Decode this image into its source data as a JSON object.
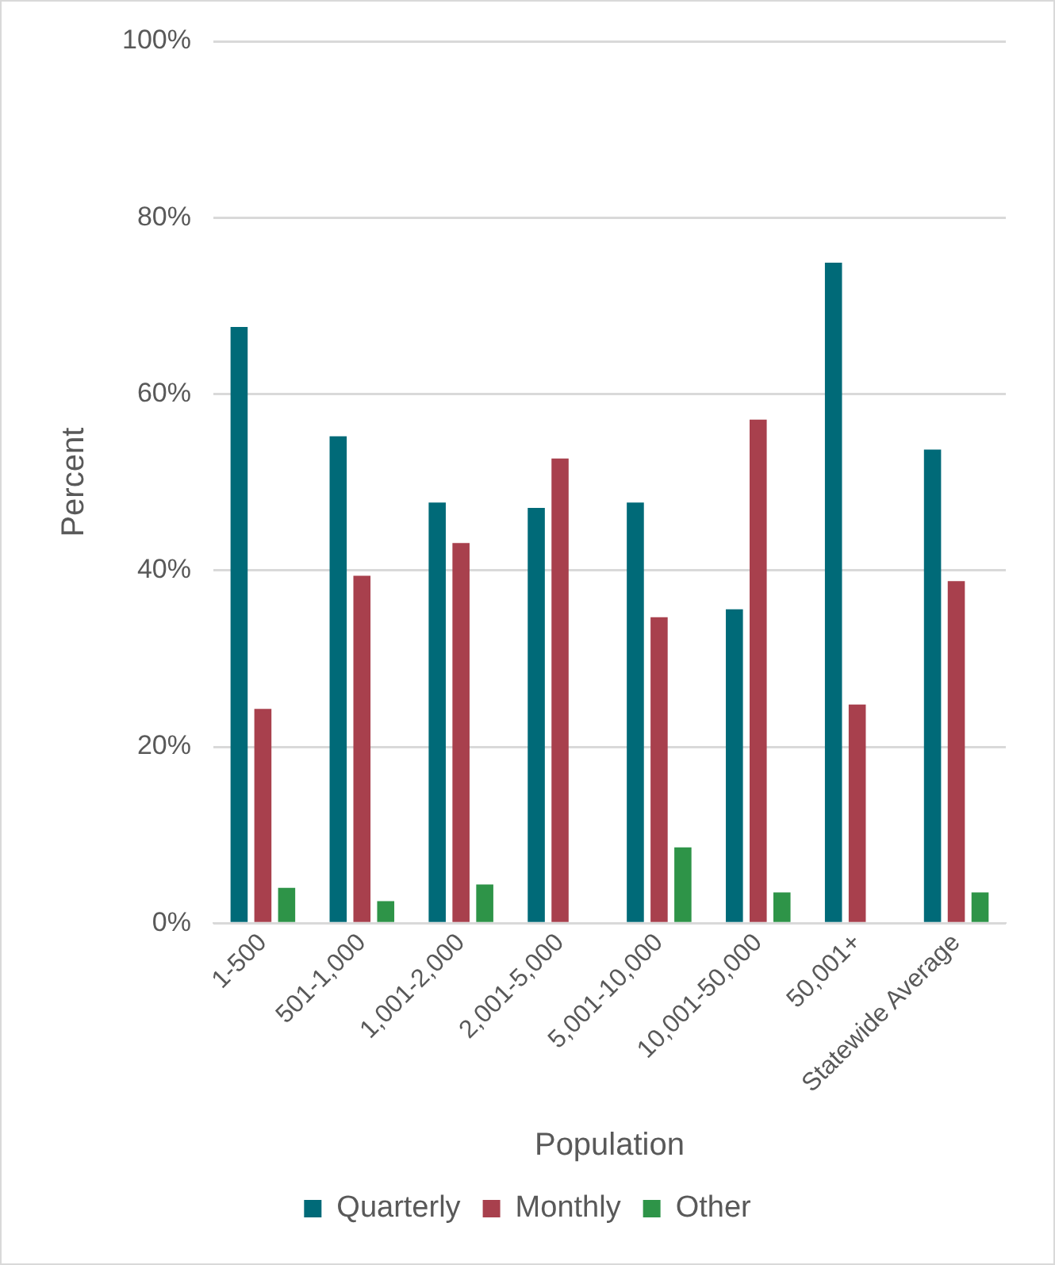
{
  "chart_data": {
    "type": "bar",
    "xlabel": "Population",
    "ylabel": "Percent",
    "categories": [
      "1-500",
      "501-1,000",
      "1,001-2,000",
      "2,001-5,000",
      "5,001-10,000",
      "10,001-50,000",
      "50,001+",
      "Statewide Average"
    ],
    "series": [
      {
        "name": "Quarterly",
        "color": "#006a78",
        "values": [
          67.6,
          55.2,
          47.7,
          47.1,
          47.7,
          35.6,
          74.9,
          53.7
        ]
      },
      {
        "name": "Monthly",
        "color": "#a8404d",
        "values": [
          24.3,
          39.4,
          43.1,
          52.7,
          34.7,
          57.1,
          24.8,
          38.8
        ]
      },
      {
        "name": "Other",
        "color": "#2e9448",
        "values": [
          4.0,
          2.5,
          4.4,
          null,
          8.6,
          3.5,
          null,
          3.5
        ]
      }
    ],
    "ylim": [
      0,
      100
    ],
    "yticks": [
      {
        "value": 0,
        "label": "0%"
      },
      {
        "value": 20,
        "label": "20%"
      },
      {
        "value": 40,
        "label": "40%"
      },
      {
        "value": 60,
        "label": "60%"
      },
      {
        "value": 80,
        "label": "80%"
      },
      {
        "value": 100,
        "label": "100%"
      }
    ],
    "grid": "y",
    "legend": "bottom"
  }
}
